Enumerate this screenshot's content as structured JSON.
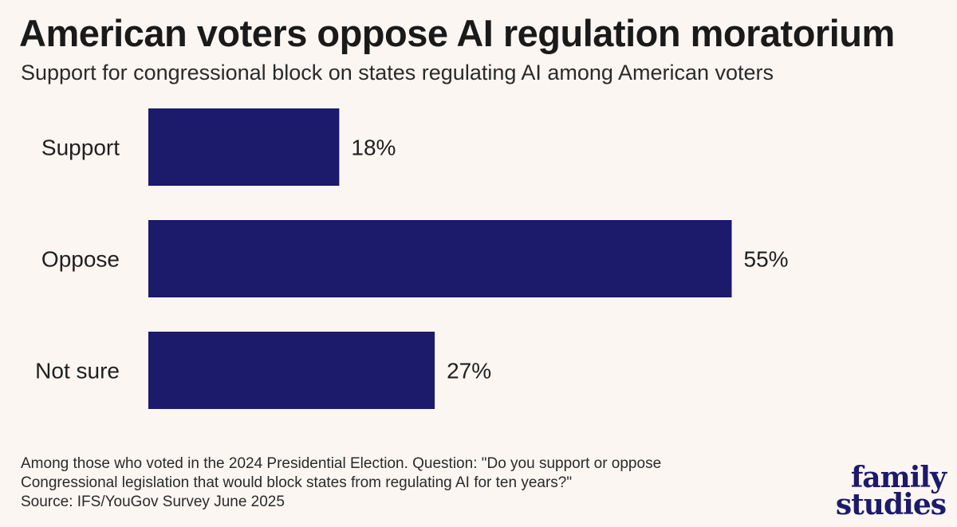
{
  "chart_data": {
    "type": "bar",
    "orientation": "horizontal",
    "title": "American voters oppose AI regulation moratorium",
    "subtitle": "Support for congressional block on states regulating AI among American voters",
    "categories": [
      "Support",
      "Oppose",
      "Not sure"
    ],
    "values": [
      18,
      55,
      27
    ],
    "value_labels": [
      "18%",
      "55%",
      "27%"
    ],
    "unit": "%",
    "xlim": [
      0,
      60
    ],
    "grid": false,
    "bar_color": "#1c1a6b"
  },
  "footnote": {
    "line1": "Among those who voted in the 2024 Presidential Election. Question: \"Do you support or oppose",
    "line2": "Congressional legislation that would block states from regulating AI for ten years?\"",
    "source": "Source: IFS/YouGov Survey June 2025"
  },
  "logo": {
    "line1": "family",
    "line2": "studies"
  }
}
